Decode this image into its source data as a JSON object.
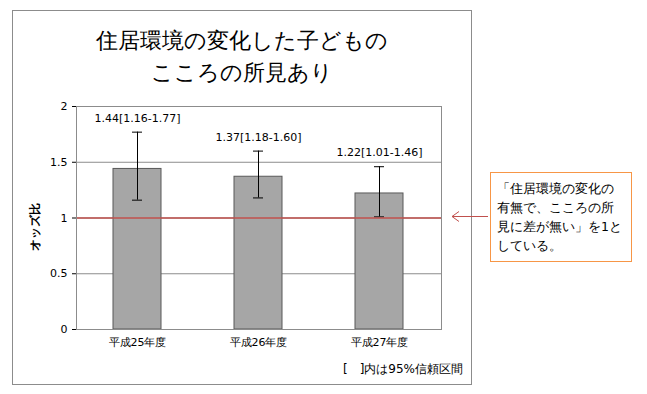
{
  "chart_data": {
    "type": "bar",
    "title": "住居環境の変化した子どもの\nこころの所見あり",
    "categories": [
      "平成25年度",
      "平成26年度",
      "平成27年度"
    ],
    "values": [
      1.44,
      1.37,
      1.22
    ],
    "ci_low": [
      1.16,
      1.18,
      1.01
    ],
    "ci_high": [
      1.77,
      1.6,
      1.46
    ],
    "data_labels": true,
    "value_labels": [
      "1.44[1.16-1.77]",
      "1.37[1.18-1.60]",
      "1.22[1.01-1.46]"
    ],
    "color": "#a6a6a6",
    "y_label": "オッズ比",
    "ylim": [
      0,
      2
    ],
    "yticks": [
      0,
      0.5,
      1,
      1.5,
      2
    ],
    "grid": true,
    "reference_line": {
      "value": 1,
      "color": "#c0504d"
    },
    "annotation": "「住居環境の変化の有無で、こころの所見に差が無い」を1としている。",
    "note": "[　]内は95%信頼区間"
  }
}
